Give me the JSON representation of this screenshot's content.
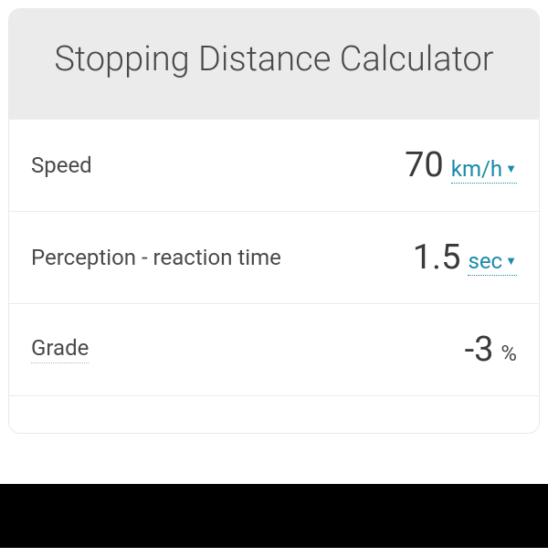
{
  "title": "Stopping Distance Calculator",
  "rows": [
    {
      "label": "Speed",
      "value": "70",
      "unit": "km/h",
      "hasDropdown": true,
      "dottedLabel": false
    },
    {
      "label": "Perception - reaction time",
      "value": "1.5",
      "unit": "sec",
      "hasDropdown": true,
      "dottedLabel": false
    },
    {
      "label": "Grade",
      "value": "-3",
      "unit": "%",
      "hasDropdown": false,
      "dottedLabel": true
    }
  ],
  "colors": {
    "headerBg": "#ebebeb",
    "titleColor": "#4a4a4a",
    "labelColor": "#4a4a4a",
    "valueColor": "#3a3a3a",
    "linkColor": "#1a8aa8",
    "borderColor": "#edecec",
    "cardBg": "#fdfdfd"
  }
}
